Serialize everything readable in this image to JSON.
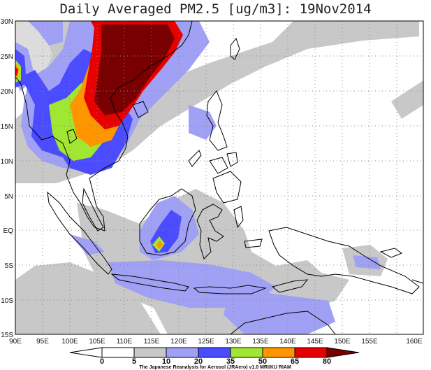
{
  "title": "Daily Averaged PM2.5 [ug/m3]: 19Nov2014",
  "lat_labels": [
    "30N",
    "25N",
    "20N",
    "15N",
    "10N",
    "5N",
    "EQ",
    "5S",
    "10S",
    "15S"
  ],
  "lon_labels": [
    "90E",
    "95E",
    "100E",
    "105E",
    "110E",
    "115E",
    "120E",
    "125E",
    "130E",
    "135E",
    "140E",
    "145E",
    "150E",
    "155E",
    "160E"
  ],
  "colorbar": {
    "levels": [
      "0",
      "5",
      "10",
      "20",
      "35",
      "50",
      "65",
      "80"
    ],
    "colors": [
      "#ffffff",
      "#ffffff",
      "#c8c8c8",
      "#a0a0f5",
      "#4b4bff",
      "#a0e632",
      "#ff9600",
      "#e60000",
      "#780000"
    ]
  },
  "credit": "The Japanese Reanalysis for Aerosol (JRAero) v1.0 MRI/KU RIAM"
}
